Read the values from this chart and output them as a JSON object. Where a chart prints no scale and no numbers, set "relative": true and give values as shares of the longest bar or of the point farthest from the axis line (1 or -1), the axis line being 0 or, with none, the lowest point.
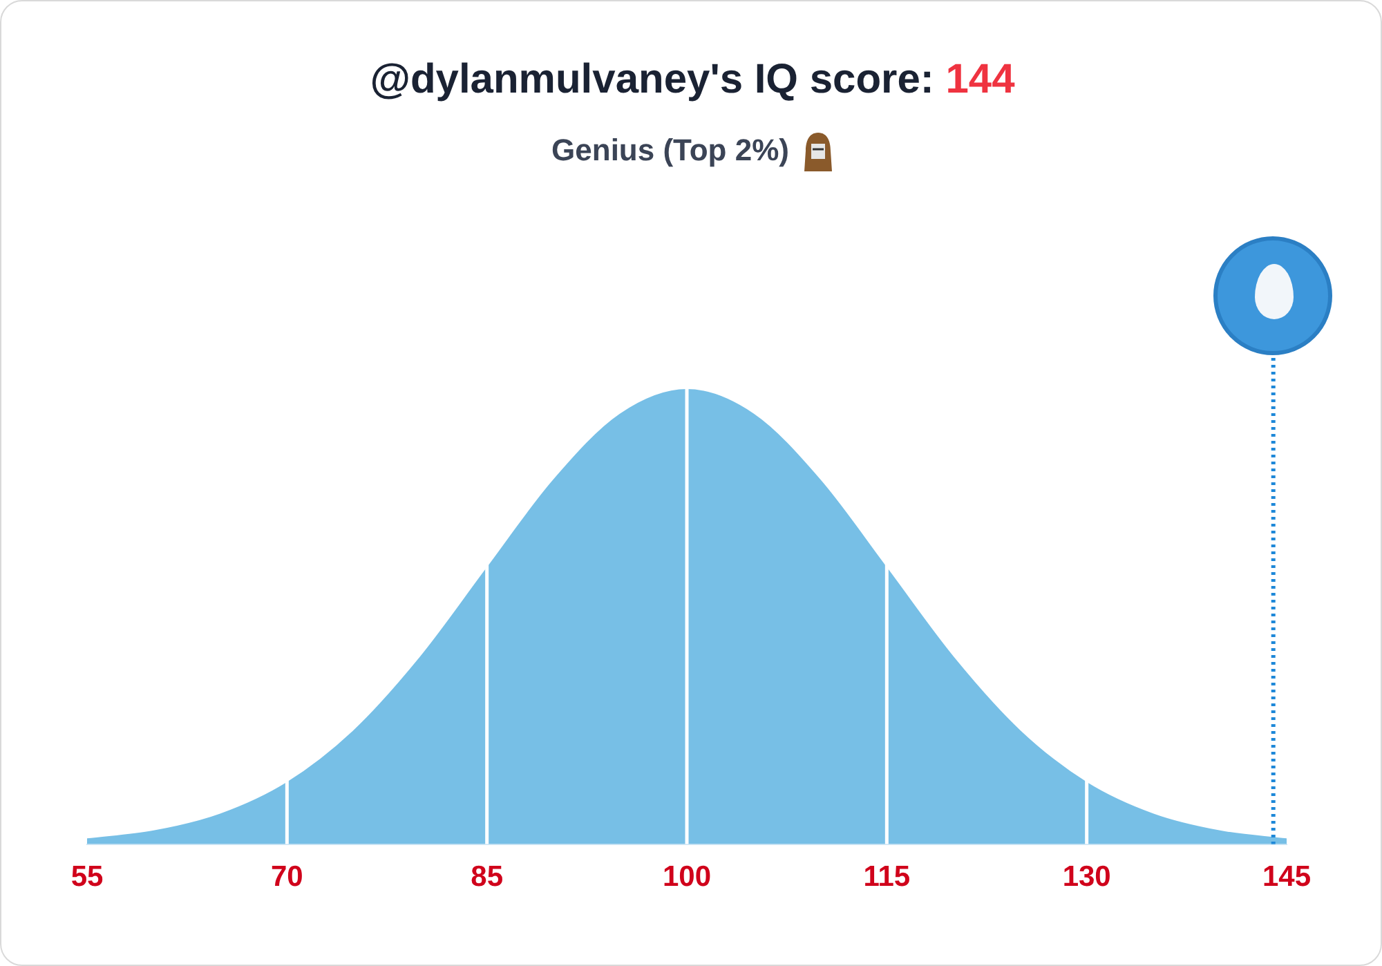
{
  "chart_data": {
    "type": "area",
    "title": "@dylanmulvaney's IQ score: 144",
    "subtitle": "Genius (Top 2%)",
    "relative": true,
    "x": [
      55,
      60,
      65,
      70,
      75,
      80,
      85,
      90,
      95,
      100,
      105,
      110,
      115,
      120,
      125,
      130,
      135,
      140,
      145
    ],
    "series": [
      {
        "color": "#77bfe6",
        "values": [
          0.011,
          0.0286,
          0.0657,
          0.135,
          0.249,
          0.411,
          0.607,
          0.801,
          0.946,
          1,
          0.946,
          0.801,
          0.607,
          0.411,
          0.249,
          0.135,
          0.0657,
          0.0286,
          0.011
        ]
      }
    ],
    "xlim": [
      55,
      145
    ],
    "xticks": [
      55,
      70,
      85,
      100,
      115,
      130,
      145
    ],
    "tick_labels": "x",
    "grid": false,
    "legend": false,
    "marker": "none",
    "ref_lines": [
      {
        "axis": "x",
        "value": 70,
        "color": "#ffffff"
      },
      {
        "axis": "x",
        "value": 85,
        "color": "#ffffff"
      },
      {
        "axis": "x",
        "value": 100,
        "color": "#ffffff"
      },
      {
        "axis": "x",
        "value": 115,
        "color": "#ffffff"
      },
      {
        "axis": "x",
        "value": 130,
        "color": "#ffffff"
      },
      {
        "axis": "x",
        "value": 144,
        "color": "#1e88d8",
        "line_style": "dotted"
      }
    ]
  }
}
